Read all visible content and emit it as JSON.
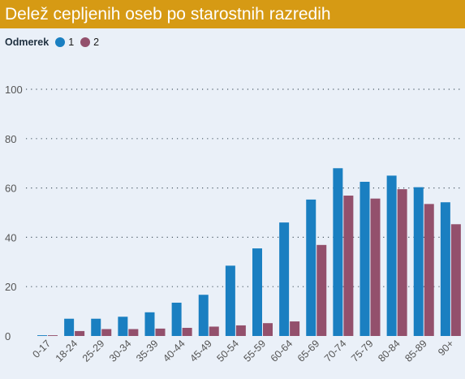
{
  "title": "Delež cepljenih oseb po starostnih razredih",
  "legend": {
    "title": "Odmerek",
    "items": [
      {
        "label": "1",
        "color": "#1a7fc1"
      },
      {
        "label": "2",
        "color": "#93506c"
      }
    ]
  },
  "chart_data": {
    "type": "bar",
    "categories": [
      "0-17",
      "18-24",
      "25-29",
      "30-34",
      "35-39",
      "40-44",
      "45-49",
      "50-54",
      "55-59",
      "60-64",
      "65-69",
      "70-74",
      "75-79",
      "80-84",
      "85-89",
      "90+"
    ],
    "series": [
      {
        "name": "1",
        "color": "#1a7fc1",
        "values": [
          0.3,
          7,
          7,
          7.8,
          9.6,
          13.5,
          16.7,
          28.5,
          35.5,
          46,
          55.3,
          68,
          62.5,
          65,
          60.3,
          54.2
        ]
      },
      {
        "name": "2",
        "color": "#93506c",
        "values": [
          0.3,
          2,
          2.8,
          2.8,
          3,
          3.3,
          3.8,
          4.3,
          5.2,
          5.9,
          36.9,
          56.9,
          55.7,
          59.5,
          53.5,
          45.3
        ]
      }
    ],
    "yticks": [
      0,
      20,
      40,
      60,
      80,
      100
    ],
    "ylim": [
      0,
      100
    ],
    "xlabel": "",
    "ylabel": "",
    "grid": true,
    "legend_position": "top-left"
  }
}
